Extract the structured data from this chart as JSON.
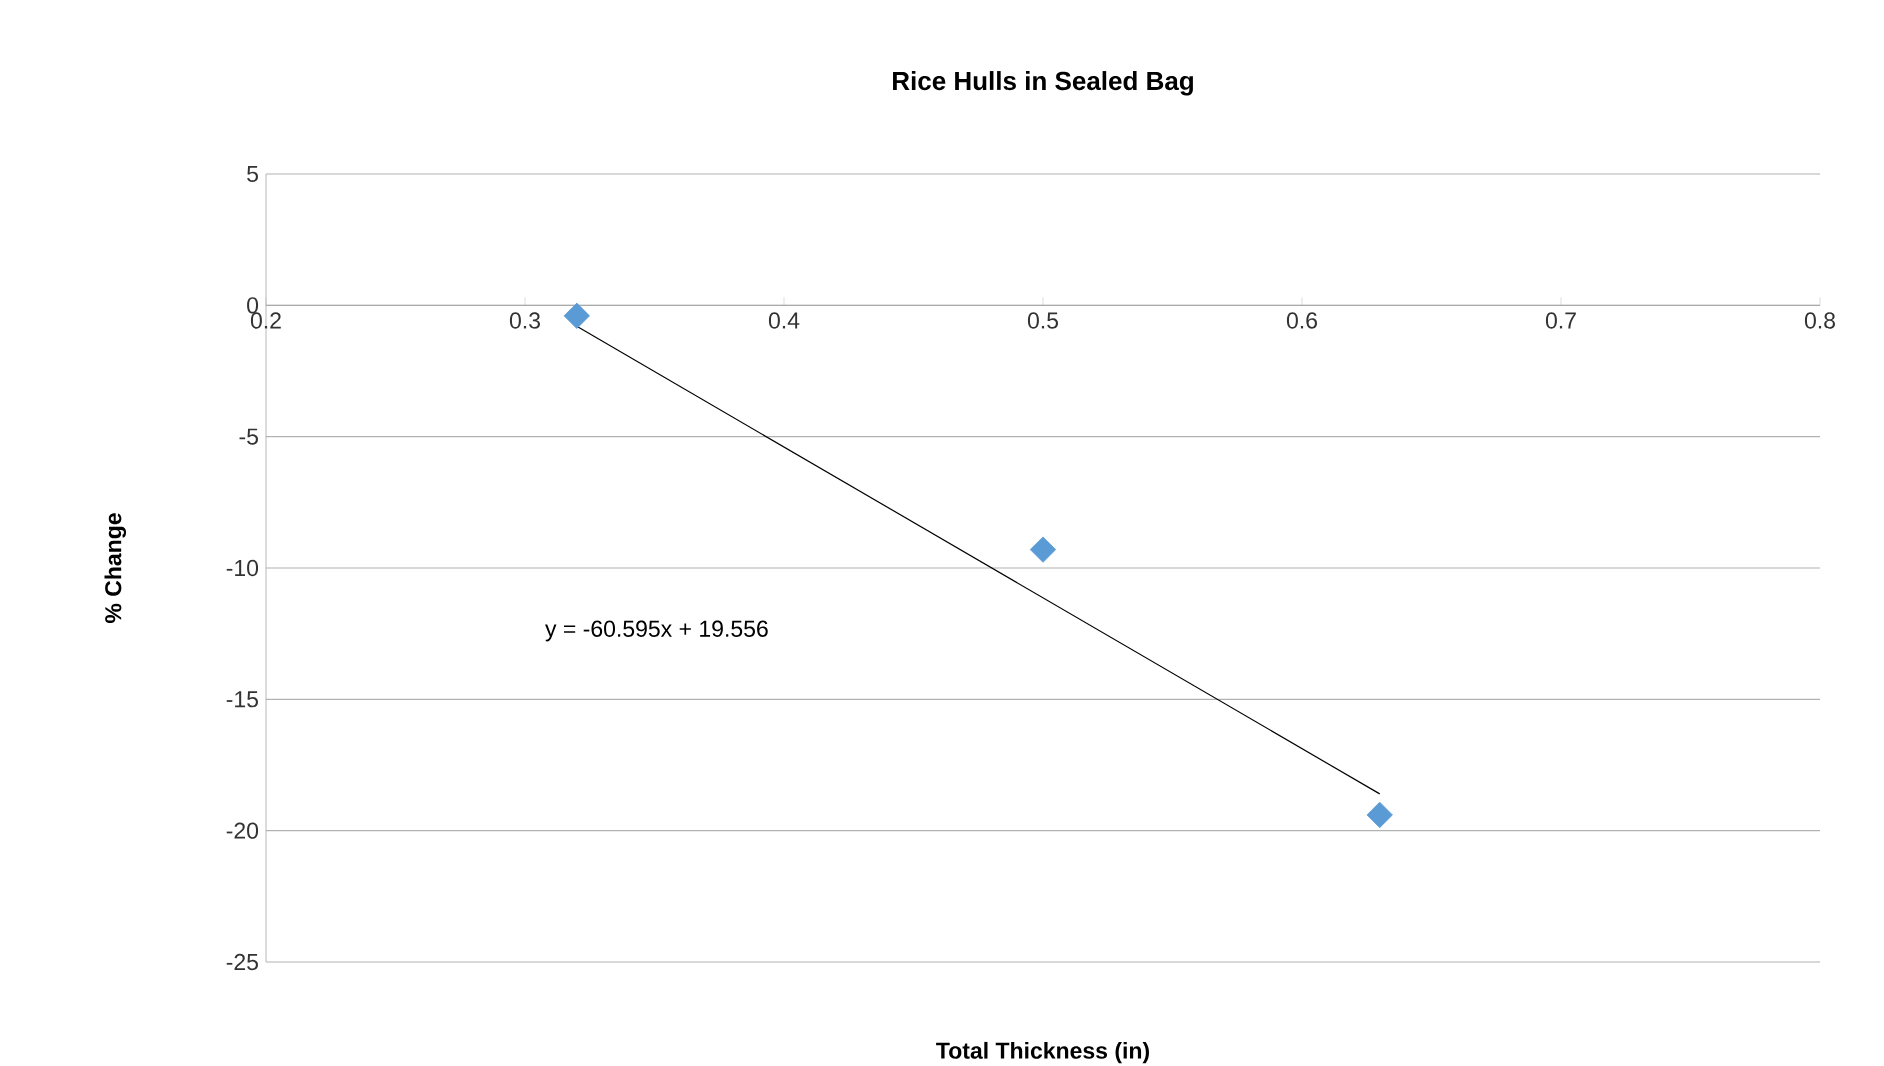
{
  "chart_data": {
    "type": "scatter",
    "title": "Rice Hulls in Sealed Bag",
    "xlabel": "Total Thickness (in)",
    "ylabel": "% Change",
    "xlim": [
      0.2,
      0.8
    ],
    "ylim": [
      -25,
      5
    ],
    "xticks": [
      0.2,
      0.3,
      0.4,
      0.5,
      0.6,
      0.7,
      0.8
    ],
    "yticks": [
      -25,
      -20,
      -15,
      -10,
      -5,
      0,
      5
    ],
    "grid": "y",
    "annotations": [
      "y = -60.595x + 19.556"
    ],
    "series": [
      {
        "x": [
          0.32,
          0.5,
          0.63
        ],
        "values": [
          -0.4,
          -9.3,
          -19.4
        ],
        "color": "#5b9bd5",
        "marker": "diamond"
      },
      {
        "type": "line",
        "x": [
          0.32,
          0.63
        ],
        "values": [
          -0.8,
          -18.6
        ],
        "color": "#000000",
        "marker": "none",
        "line_style": "solid"
      }
    ]
  }
}
